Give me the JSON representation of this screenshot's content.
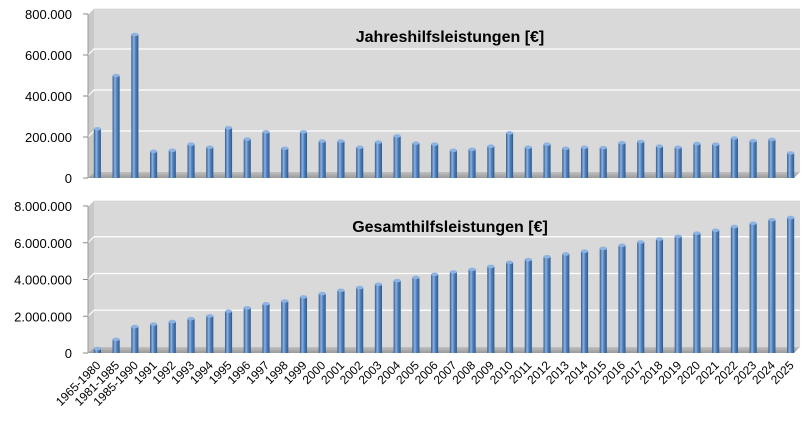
{
  "chart_data": [
    {
      "type": "bar",
      "title": "Jahreshilfsleistungen [€]",
      "ylim": [
        0,
        800000
      ],
      "yticks": [
        "0",
        "200.000",
        "400.000",
        "600.000",
        "800.000"
      ],
      "ytick_values": [
        0,
        200000,
        400000,
        600000,
        800000
      ],
      "grid": true,
      "categories": [
        "1965-1980",
        "1981-1985",
        "1985-1990",
        "1991",
        "1992",
        "1993",
        "1994",
        "1995",
        "1996",
        "1997",
        "1998",
        "1999",
        "2000",
        "2001",
        "2002",
        "2003",
        "2004",
        "2005",
        "2006",
        "2007",
        "2008",
        "2009",
        "2010",
        "2011",
        "2012",
        "2013",
        "2014",
        "2015",
        "2016",
        "2017",
        "2018",
        "2019",
        "2020",
        "2021",
        "2022",
        "2023",
        "2024",
        "2025"
      ],
      "values": [
        240000,
        500000,
        700000,
        130000,
        135000,
        165000,
        150000,
        245000,
        190000,
        225000,
        145000,
        225000,
        180000,
        180000,
        150000,
        175000,
        205000,
        170000,
        165000,
        135000,
        140000,
        155000,
        220000,
        150000,
        165000,
        145000,
        150000,
        148000,
        172000,
        178000,
        155000,
        150000,
        168000,
        165000,
        195000,
        182000,
        188000,
        122000
      ]
    },
    {
      "type": "bar",
      "title": "Gesamthilfsleistungen [€]",
      "ylim": [
        0,
        8000000
      ],
      "yticks": [
        "0",
        "2.000.000",
        "4.000.000",
        "6.000.000",
        "8.000.000"
      ],
      "ytick_values": [
        0,
        2000000,
        4000000,
        6000000,
        8000000
      ],
      "grid": true,
      "categories": [
        "1965-1980",
        "1981-1985",
        "1985-1990",
        "1991",
        "1992",
        "1993",
        "1994",
        "1995",
        "1996",
        "1997",
        "1998",
        "1999",
        "2000",
        "2001",
        "2002",
        "2003",
        "2004",
        "2005",
        "2006",
        "2007",
        "2008",
        "2009",
        "2010",
        "2011",
        "2012",
        "2013",
        "2014",
        "2015",
        "2016",
        "2017",
        "2018",
        "2019",
        "2020",
        "2021",
        "2022",
        "2023",
        "2024",
        "2025"
      ],
      "values": [
        240000,
        740000,
        1440000,
        1570000,
        1710000,
        1870000,
        2020000,
        2270000,
        2460000,
        2680000,
        2830000,
        3050000,
        3230000,
        3410000,
        3560000,
        3740000,
        3940000,
        4110000,
        4280000,
        4410000,
        4550000,
        4710000,
        4930000,
        5080000,
        5240000,
        5390000,
        5540000,
        5690000,
        5860000,
        6040000,
        6200000,
        6350000,
        6520000,
        6680000,
        6880000,
        7060000,
        7250000,
        7370000
      ]
    }
  ],
  "colors": {
    "plot_background": "#d9d9d9",
    "bar_fill": "#4f81bd",
    "bar_highlight": "#8db3e2",
    "bar_shadow": "#2f5a8e",
    "gridline": "#ffffff",
    "text": "#000000"
  }
}
